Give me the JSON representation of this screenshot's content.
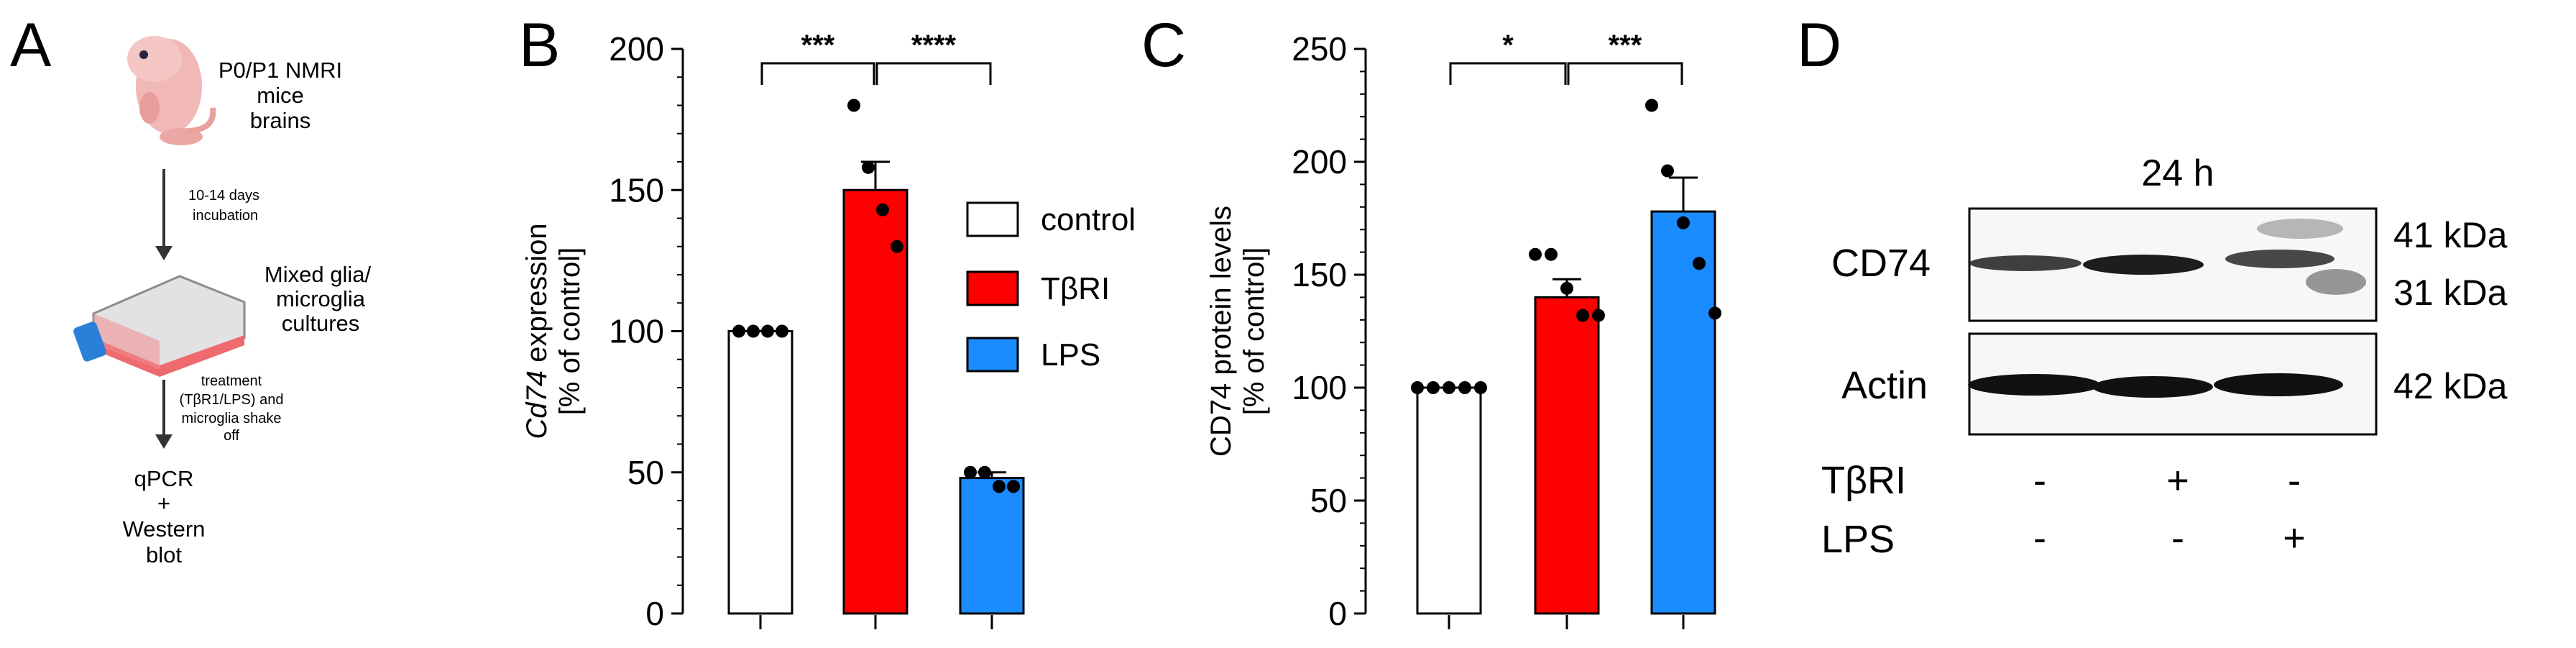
{
  "panels": {
    "a": {
      "letter": "A",
      "mouse_label": [
        "P0/P1 NMRI",
        "mice",
        "brains"
      ],
      "step1_label": [
        "10-14 days",
        "incubation"
      ],
      "flask_label": [
        "Mixed glia/",
        "microglia",
        "cultures"
      ],
      "step2_label": [
        "treatment",
        "(TβR1/LPS) and",
        "microglia shake",
        "off"
      ],
      "output_label": [
        "qPCR",
        "+",
        "Western",
        "blot"
      ]
    },
    "b": {
      "letter": "B"
    },
    "c": {
      "letter": "C"
    },
    "d": {
      "letter": "D",
      "timepoint": "24 h",
      "blot_labels": [
        "CD74",
        "Actin"
      ],
      "size_labels": [
        "41 kDa",
        "31 kDa",
        "42 kDa"
      ],
      "treatment_rows": [
        {
          "label": "TβRI",
          "marks": [
            "-",
            "+",
            "-"
          ]
        },
        {
          "label": "LPS",
          "marks": [
            "-",
            "-",
            "+"
          ]
        }
      ]
    }
  },
  "legend": [
    {
      "label": "control",
      "color": "#ffffff"
    },
    {
      "label": "TβRI",
      "color": "#ff0000"
    },
    {
      "label": "LPS",
      "color": "#1a8cff"
    }
  ],
  "chart_data": [
    {
      "panel": "B",
      "type": "bar",
      "ylabel": "Cd74 expression",
      "ylabel_italic_part": "Cd74",
      "ylabel_rest": " expression",
      "ylabel2": "[% of control]",
      "categories": [
        "control",
        "TβRI",
        "LPS"
      ],
      "values": [
        100,
        150,
        48
      ],
      "errors": [
        0,
        10,
        2
      ],
      "points": [
        [
          100,
          100,
          100,
          100
        ],
        [
          180,
          158,
          143,
          130
        ],
        [
          50,
          50,
          45,
          45
        ]
      ],
      "colors": [
        "#ffffff",
        "#ff0000",
        "#1a8cff"
      ],
      "ylim": [
        0,
        200
      ],
      "yticks": [
        0,
        50,
        100,
        150,
        200
      ],
      "significance": [
        {
          "from": 0,
          "to": 1,
          "label": "***"
        },
        {
          "from": 1,
          "to": 2,
          "label": "****"
        }
      ]
    },
    {
      "panel": "C",
      "type": "bar",
      "ylabel": "CD74 protein levels",
      "ylabel2": "[% of control]",
      "categories": [
        "control",
        "TβRI",
        "LPS"
      ],
      "values": [
        100,
        140,
        178
      ],
      "errors": [
        0,
        8,
        15
      ],
      "points": [
        [
          100,
          100,
          100,
          100,
          100
        ],
        [
          159,
          159,
          144,
          132,
          132
        ],
        [
          225,
          196,
          173,
          155,
          133
        ]
      ],
      "colors": [
        "#ffffff",
        "#ff0000",
        "#1a8cff"
      ],
      "ylim": [
        0,
        250
      ],
      "yticks": [
        0,
        50,
        100,
        150,
        200,
        250
      ],
      "significance": [
        {
          "from": 0,
          "to": 1,
          "label": "*"
        },
        {
          "from": 1,
          "to": 2,
          "label": "***"
        }
      ]
    }
  ]
}
